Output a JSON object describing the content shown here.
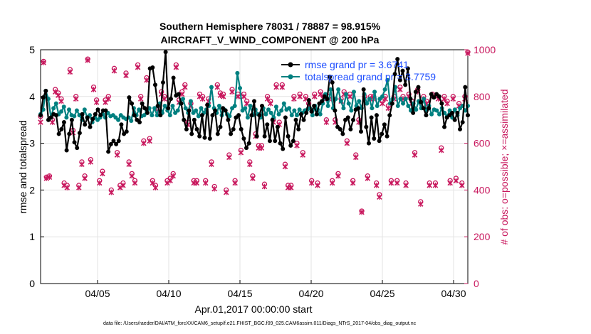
{
  "chart_data": {
    "type": "line",
    "title": "Southern Hemisphere 78031 / 78887 = 98.915%",
    "subtitle": "AIRCRAFT_V_WIND_COMPONENT @ 200 hPa",
    "xlabel": "Apr.01,2017 00:00:00 start",
    "ylabel_left": "rmse and totalspread",
    "ylabel_right": "# of obs: o=possible; ×=assimilated",
    "footer": "data file: /Users/raeder/DAI/ATM_forcXX/CAM6_setup/f.e21.FHIST_BGC.f09_025.CAM6assim.011/Diags_NTrS_2017-04/obs_diag_output.nc",
    "x_range": [
      1,
      31
    ],
    "ylim_left": [
      0,
      5
    ],
    "ylim_right": [
      0,
      1000
    ],
    "x_tick_values": [
      5,
      10,
      15,
      20,
      25,
      30
    ],
    "x_tick_labels": [
      "04/05",
      "04/10",
      "04/15",
      "04/20",
      "04/25",
      "04/30"
    ],
    "y_left_ticks": [
      "0",
      "1",
      "2",
      "3",
      "4",
      "5"
    ],
    "y_right_ticks": [
      "0",
      "200",
      "400",
      "600",
      "800",
      "1000"
    ],
    "grid": true,
    "legend": [
      {
        "label": "rmse grand pr = 3.6741",
        "color": "#000000"
      },
      {
        "label": "totalspread grand pr = 3.7759",
        "color": "#008080"
      }
    ],
    "series": [
      {
        "name": "rmse",
        "axis": "left",
        "color": "#000000",
        "values": [
          3.6,
          3.98,
          4.12,
          3.5,
          3.55,
          3.62,
          3.6,
          3.2,
          3.3,
          3.45,
          2.85,
          3.2,
          3.5,
          3.02,
          2.9,
          3.22,
          3.62,
          3.4,
          3.55,
          3.35,
          3.52,
          3.62,
          3.72,
          3.6,
          3.7,
          3.7,
          2.82,
          2.98,
          3.05,
          2.98,
          3.05,
          3.4,
          3.2,
          3.25,
          3.98,
          3.85,
          3.6,
          3.5,
          3.45,
          3.85,
          3.75,
          3.65,
          4.6,
          4.62,
          4.25,
          3.8,
          3.6,
          4.3,
          4.95,
          3.75,
          3.95,
          4.4,
          4.02,
          4.05,
          3.85,
          3.5,
          3.3,
          3.7,
          3.2,
          3.5,
          3.3,
          3.15,
          3.6,
          3.12,
          3.82,
          3.1,
          3.6,
          3.7,
          3.2,
          3.35,
          3.75,
          3.7,
          3.5,
          3.2,
          3.3,
          3.55,
          3.6,
          3.3,
          3.1,
          2.9,
          3.0,
          3.6,
          3.9,
          3.15,
          3.6,
          3.8,
          3.15,
          3.4,
          3.05,
          3.5,
          3.05,
          3.35,
          3.0,
          2.88,
          3.55,
          3.15,
          2.95,
          3.05,
          3.5,
          3.3,
          3.62,
          3.5,
          3.65,
          3.92,
          3.68,
          3.8,
          3.62,
          3.85,
          3.9,
          4.0,
          3.95,
          4.42,
          4.3,
          3.7,
          3.35,
          3.3,
          3.2,
          3.5,
          3.55,
          3.3,
          3.5,
          3.72,
          3.75,
          3.25,
          4.15,
          3.35,
          3.0,
          3.55,
          3.1,
          3.6,
          3.05,
          3.2,
          3.4,
          3.15,
          3.6,
          3.85,
          4.48,
          4.8,
          4.35,
          4.55,
          4.25,
          4.6,
          3.95,
          3.65,
          4.1,
          4.2,
          3.88,
          3.75,
          3.6,
          3.75,
          4.05,
          3.98,
          4.05,
          4.0,
          3.85,
          3.35,
          3.55,
          3.6,
          3.65,
          3.5,
          3.65,
          3.3,
          3.45,
          4.2,
          3.6
        ]
      },
      {
        "name": "totalspread",
        "axis": "left",
        "color": "#008080",
        "values": [
          3.62,
          3.72,
          4.12,
          3.95,
          3.55,
          3.75,
          3.85,
          3.62,
          3.68,
          3.78,
          3.55,
          3.72,
          3.6,
          3.58,
          3.7,
          3.6,
          3.5,
          3.72,
          3.55,
          3.6,
          3.45,
          3.55,
          3.5,
          3.55,
          3.62,
          3.55,
          3.65,
          3.58,
          3.6,
          3.55,
          3.5,
          3.6,
          3.55,
          3.52,
          3.55,
          3.48,
          3.75,
          3.6,
          3.72,
          3.58,
          3.6,
          3.7,
          3.75,
          3.6,
          3.75,
          3.6,
          3.85,
          3.65,
          3.8,
          3.7,
          3.6,
          3.8,
          3.65,
          3.7,
          3.85,
          3.95,
          3.75,
          3.65,
          3.9,
          3.65,
          3.7,
          3.58,
          3.75,
          3.65,
          3.72,
          3.8,
          4.2,
          3.75,
          3.65,
          3.8,
          3.6,
          3.72,
          3.62,
          3.58,
          3.75,
          3.8,
          4.5,
          4.18,
          3.7,
          3.75,
          3.55,
          3.8,
          3.6,
          3.72,
          3.62,
          3.55,
          3.75,
          3.62,
          3.72,
          3.65,
          3.55,
          3.78,
          3.62,
          3.7,
          3.85,
          3.72,
          3.75,
          3.6,
          3.7,
          3.6,
          3.72,
          3.65,
          3.7,
          3.72,
          3.75,
          3.6,
          3.8,
          3.72,
          3.62,
          3.85,
          4.05,
          3.8,
          4.15,
          3.75,
          3.95,
          4.15,
          3.9,
          3.75,
          4.05,
          3.85,
          3.7,
          4.1,
          3.8,
          3.9,
          3.75,
          4.05,
          3.85,
          3.95,
          3.75,
          4.1,
          3.8,
          3.95,
          4.0,
          4.15,
          4.35,
          3.85,
          3.95,
          4.2,
          3.8,
          3.95,
          3.85,
          3.95,
          3.8,
          3.7,
          3.85,
          3.72,
          3.9,
          3.75,
          3.95,
          3.7,
          3.8,
          3.62,
          3.72,
          3.7,
          3.62,
          3.75,
          3.65,
          3.58,
          3.7,
          3.55,
          3.72,
          3.6,
          3.75,
          3.8,
          3.7,
          3.8
        ]
      },
      {
        "name": "obs_possible",
        "axis": "right",
        "marker": "o",
        "color": "#c8175d",
        "values": [
          715,
          950,
          455,
          460,
          700,
          830,
          815,
          790,
          430,
          420,
          915,
          655,
          800,
          420,
          520,
          460,
          960,
          530,
          840,
          785,
          440,
          480,
          785,
          800,
          400,
          920,
          560,
          420,
          430,
          900,
          520,
          470,
          440,
          935,
          800,
          610,
          880,
          620,
          440,
          420,
          745,
          820,
          800,
          440,
          450,
          470,
          935,
          785,
          820,
          850,
          690,
          770,
          440,
          440,
          810,
          800,
          440,
          790,
          520,
          415,
          850,
          815,
          810,
          400,
          550,
          830,
          440,
          810,
          570,
          810,
          780,
          520,
          460,
          640,
          590,
          590,
          425,
          800,
          780,
          700,
          850,
          690,
          850,
          510,
          420,
          420,
          800,
          600,
          810,
          560,
          800,
          770,
          440,
          810,
          430,
          820,
          800,
          700,
          800,
          440,
          700,
          470,
          790,
          820,
          610,
          810,
          440,
          550,
          700,
          310,
          800,
          460,
          800,
          800,
          430,
          380,
          780,
          800,
          760,
          440,
          800,
          440,
          840,
          800,
          430,
          810,
          780,
          560,
          830,
          350,
          800,
          780,
          430,
          810,
          430,
          800,
          580,
          800,
          780,
          440,
          800,
          450,
          770,
          430,
          800,
          990
        ]
      },
      {
        "name": "obs_assimilated",
        "axis": "right",
        "marker": "x",
        "color": "#c8175d",
        "values": [
          690,
          945,
          450,
          455,
          690,
          820,
          805,
          780,
          420,
          410,
          905,
          645,
          790,
          410,
          510,
          450,
          955,
          520,
          830,
          775,
          430,
          470,
          775,
          790,
          390,
          910,
          550,
          410,
          420,
          890,
          510,
          460,
          430,
          925,
          790,
          600,
          870,
          610,
          430,
          410,
          735,
          810,
          790,
          430,
          440,
          460,
          925,
          775,
          810,
          840,
          680,
          760,
          430,
          430,
          800,
          790,
          430,
          780,
          510,
          405,
          840,
          805,
          800,
          390,
          540,
          820,
          430,
          800,
          560,
          800,
          770,
          510,
          450,
          630,
          580,
          580,
          415,
          790,
          770,
          690,
          840,
          680,
          840,
          500,
          410,
          410,
          790,
          590,
          800,
          550,
          790,
          760,
          430,
          800,
          420,
          810,
          790,
          690,
          790,
          430,
          690,
          460,
          780,
          810,
          600,
          800,
          430,
          540,
          690,
          305,
          790,
          450,
          790,
          790,
          420,
          370,
          770,
          790,
          750,
          430,
          790,
          430,
          830,
          790,
          420,
          800,
          770,
          550,
          820,
          340,
          790,
          770,
          420,
          800,
          420,
          790,
          570,
          790,
          770,
          430,
          790,
          440,
          760,
          420,
          790,
          985
        ]
      }
    ]
  }
}
